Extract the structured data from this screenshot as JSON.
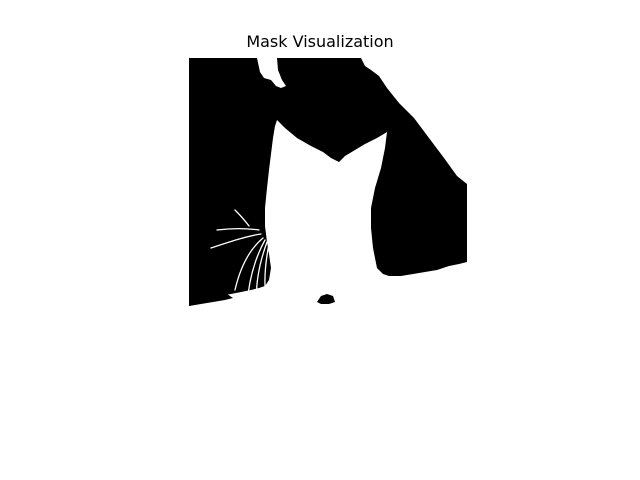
{
  "figure": {
    "title": "Mask Visualization",
    "background_color": "#ffffff"
  },
  "image": {
    "kind": "binary segmentation mask",
    "foreground_color": "#ffffff",
    "background_color": "#000000",
    "subject": "cat"
  }
}
